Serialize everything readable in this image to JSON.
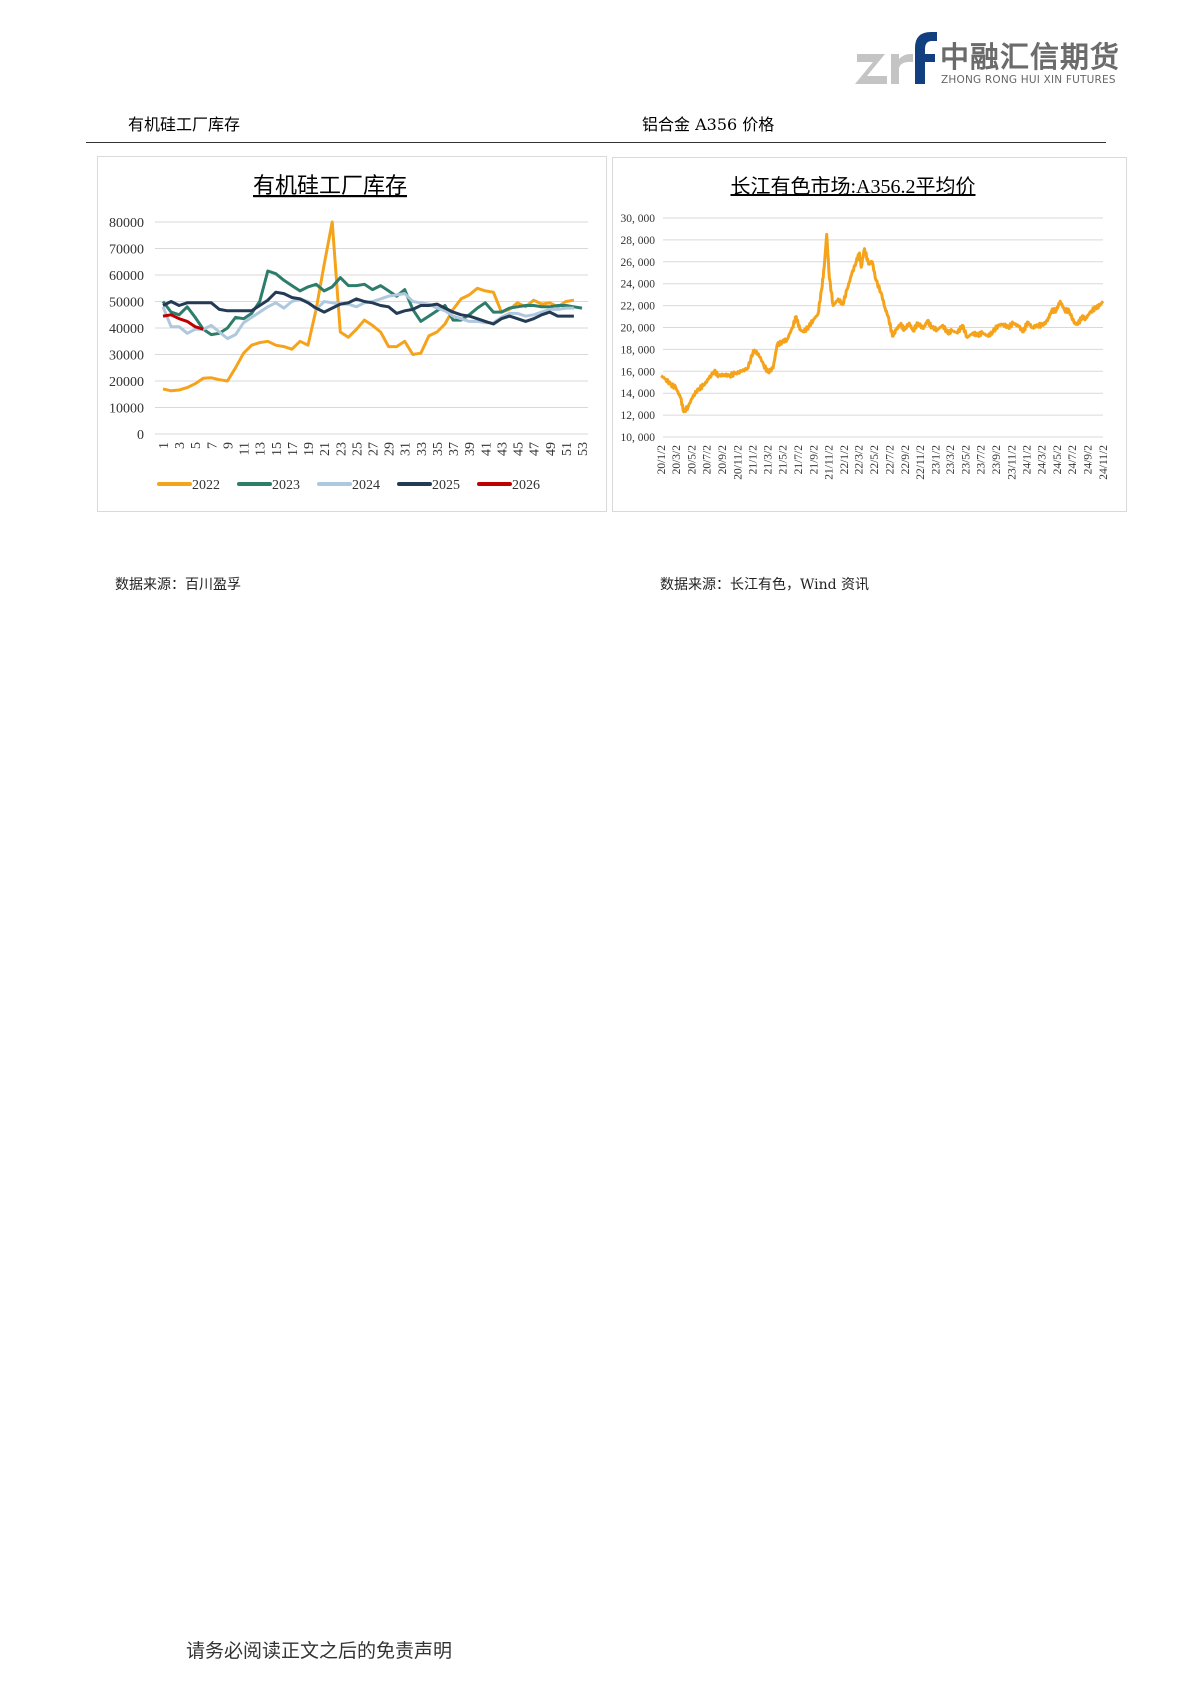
{
  "header": {
    "logo_mark": "zrf",
    "logo_cn": "中融汇信期货",
    "logo_en": "ZHONG RONG HUI XIN FUTURES"
  },
  "sections": {
    "left_title": "有机硅工厂库存",
    "right_title": "铝合金 A356 价格",
    "left_source": "数据来源：百川盈孚",
    "right_source": "数据来源：长江有色，Wind 资讯"
  },
  "footer": {
    "disclaimer": "请务必阅读正文之后的免责声明"
  },
  "chart_data": [
    {
      "type": "line",
      "title": "有机硅工厂库存",
      "xlabel": "",
      "ylabel": "",
      "ylim": [
        0,
        80000
      ],
      "y_ticks": [
        "0",
        "10000",
        "20000",
        "30000",
        "40000",
        "50000",
        "60000",
        "70000",
        "80000"
      ],
      "x_ticks": [
        "1",
        "3",
        "5",
        "7",
        "9",
        "11",
        "13",
        "15",
        "17",
        "19",
        "21",
        "23",
        "25",
        "27",
        "29",
        "31",
        "33",
        "35",
        "37",
        "39",
        "41",
        "43",
        "45",
        "47",
        "49",
        "51",
        "53"
      ],
      "x_range": [
        1,
        53
      ],
      "grid": true,
      "legend": "bottom",
      "series": [
        {
          "name": "2022",
          "color": "#F5A31A",
          "values": [
            17000,
            16300,
            16600,
            17500,
            19000,
            21000,
            21200,
            20500,
            20000,
            25000,
            30500,
            33500,
            34500,
            35000,
            33500,
            33000,
            32000,
            35000,
            33500,
            47000,
            64000,
            80000,
            38500,
            36500,
            39500,
            43000,
            41000,
            38500,
            33000,
            33000,
            35000,
            30000,
            30500,
            37000,
            38500,
            41500,
            47000,
            51000,
            52500,
            55000,
            54000,
            53500,
            46000,
            47000,
            49500,
            48000,
            50500,
            49000,
            49500,
            48000,
            50000,
            50500
          ]
        },
        {
          "name": "2023",
          "color": "#2E7D6B",
          "values": [
            50000,
            46000,
            45000,
            48000,
            44000,
            39500,
            37500,
            38000,
            40000,
            44000,
            43500,
            45500,
            50000,
            61500,
            60500,
            58000,
            56000,
            54000,
            55500,
            56500,
            54000,
            55500,
            59000,
            56000,
            56000,
            56500,
            54500,
            56000,
            54000,
            52000,
            54500,
            47000,
            42500,
            44500,
            46500,
            48500,
            43000,
            43000,
            45000,
            47500,
            49500,
            46000,
            46000,
            47500,
            48000,
            48500,
            48500,
            48000,
            48000,
            48500,
            48500,
            48000,
            47500
          ]
        },
        {
          "name": "2024",
          "color": "#AFC8DE",
          "values": [
            48000,
            40500,
            40500,
            38000,
            39500,
            39500,
            41000,
            38500,
            36000,
            37500,
            42000,
            44000,
            46000,
            48000,
            49500,
            47500,
            50000,
            51000,
            50000,
            47000,
            50000,
            49500,
            49000,
            49000,
            48000,
            49500,
            50000,
            51000,
            52000,
            52500,
            53000,
            50000,
            49500,
            49000,
            47500,
            46500,
            44500,
            43500,
            42500,
            42500,
            42000,
            42000,
            44000,
            45500,
            45500,
            44500,
            45000,
            46000,
            47000,
            47000,
            47500,
            47500
          ]
        },
        {
          "name": "2025",
          "color": "#243B55",
          "values": [
            48500,
            50000,
            48500,
            49500,
            49500,
            49500,
            49500,
            47000,
            46500,
            46500,
            46500,
            46500,
            48500,
            50500,
            53500,
            53000,
            51500,
            51000,
            49500,
            47500,
            46000,
            47500,
            49000,
            49500,
            51000,
            50000,
            49500,
            48500,
            48000,
            45500,
            46500,
            47000,
            48500,
            48500,
            49000,
            47500,
            46000,
            45000,
            44500,
            43500,
            42500,
            41500,
            43500,
            44500,
            43500,
            42500,
            43500,
            45000,
            46000,
            44500,
            44500,
            44500
          ]
        },
        {
          "name": "2026",
          "color": "#C00000",
          "values": [
            44500,
            45000,
            43500,
            42500,
            40500,
            39500
          ]
        }
      ]
    },
    {
      "type": "line",
      "title": "长江有色市场:A356.2平均价",
      "xlabel": "",
      "ylabel": "",
      "ylim": [
        10000,
        30000
      ],
      "y_ticks": [
        "10, 000",
        "12, 000",
        "14, 000",
        "16, 000",
        "18, 000",
        "20, 000",
        "22, 000",
        "24, 000",
        "26, 000",
        "28, 000",
        "30, 000"
      ],
      "x_ticks": [
        "20/1/2",
        "20/3/2",
        "20/5/2",
        "20/7/2",
        "20/9/2",
        "20/11/2",
        "21/1/2",
        "21/3/2",
        "21/5/2",
        "21/7/2",
        "21/9/2",
        "21/11/2",
        "22/1/2",
        "22/3/2",
        "22/5/2",
        "22/7/2",
        "22/9/2",
        "22/11/2",
        "23/1/2",
        "23/3/2",
        "23/5/2",
        "23/7/2",
        "23/9/2",
        "23/11/2",
        "24/1/2",
        "24/3/2",
        "24/5/2",
        "24/7/2",
        "24/9/2",
        "24/11/2"
      ],
      "x_range": [
        "2020-01-02",
        "2024-11-02"
      ],
      "grid": true,
      "legend": "none",
      "series": [
        {
          "color": "#F5A31A",
          "points": [
            [
              "2020-01-02",
              15600
            ],
            [
              "2020-01-20",
              15300
            ],
            [
              "2020-02-10",
              14800
            ],
            [
              "2020-03-01",
              14500
            ],
            [
              "2020-03-20",
              13600
            ],
            [
              "2020-04-02",
              12300
            ],
            [
              "2020-04-20",
              12800
            ],
            [
              "2020-05-10",
              13800
            ],
            [
              "2020-06-01",
              14400
            ],
            [
              "2020-06-20",
              14700
            ],
            [
              "2020-07-10",
              15300
            ],
            [
              "2020-08-01",
              16000
            ],
            [
              "2020-08-20",
              15600
            ],
            [
              "2020-09-10",
              15700
            ],
            [
              "2020-10-01",
              15600
            ],
            [
              "2020-10-25",
              15800
            ],
            [
              "2020-11-20",
              16000
            ],
            [
              "2020-12-15",
              16300
            ],
            [
              "2021-01-05",
              17900
            ],
            [
              "2021-01-25",
              17600
            ],
            [
              "2021-02-15",
              16600
            ],
            [
              "2021-03-05",
              15900
            ],
            [
              "2021-03-25",
              16300
            ],
            [
              "2021-04-10",
              18400
            ],
            [
              "2021-05-01",
              18700
            ],
            [
              "2021-05-20",
              18900
            ],
            [
              "2021-06-10",
              20000
            ],
            [
              "2021-06-25",
              21000
            ],
            [
              "2021-07-10",
              19800
            ],
            [
              "2021-07-25",
              19600
            ],
            [
              "2021-08-15",
              20100
            ],
            [
              "2021-09-01",
              20700
            ],
            [
              "2021-09-20",
              21200
            ],
            [
              "2021-10-05",
              23500
            ],
            [
              "2021-10-15",
              25500
            ],
            [
              "2021-10-25",
              28500
            ],
            [
              "2021-11-05",
              24500
            ],
            [
              "2021-11-20",
              22000
            ],
            [
              "2021-12-10",
              22600
            ],
            [
              "2021-12-28",
              22100
            ],
            [
              "2022-01-15",
              23500
            ],
            [
              "2022-02-01",
              24800
            ],
            [
              "2022-02-20",
              26000
            ],
            [
              "2022-03-05",
              26800
            ],
            [
              "2022-03-12",
              25500
            ],
            [
              "2022-03-25",
              27200
            ],
            [
              "2022-04-10",
              25800
            ],
            [
              "2022-04-25",
              26000
            ],
            [
              "2022-05-10",
              24300
            ],
            [
              "2022-05-30",
              23200
            ],
            [
              "2022-06-15",
              21800
            ],
            [
              "2022-06-30",
              20800
            ],
            [
              "2022-07-15",
              19200
            ],
            [
              "2022-07-30",
              19800
            ],
            [
              "2022-08-15",
              20300
            ],
            [
              "2022-09-01",
              19800
            ],
            [
              "2022-09-20",
              20400
            ],
            [
              "2022-10-05",
              19700
            ],
            [
              "2022-10-25",
              20400
            ],
            [
              "2022-11-15",
              19900
            ],
            [
              "2022-12-01",
              20600
            ],
            [
              "2022-12-20",
              20000
            ],
            [
              "2023-01-10",
              19800
            ],
            [
              "2023-02-01",
              20200
            ],
            [
              "2023-02-20",
              19500
            ],
            [
              "2023-03-10",
              19700
            ],
            [
              "2023-04-01",
              19500
            ],
            [
              "2023-04-20",
              20200
            ],
            [
              "2023-05-10",
              19100
            ],
            [
              "2023-06-01",
              19500
            ],
            [
              "2023-06-20",
              19300
            ],
            [
              "2023-07-10",
              19500
            ],
            [
              "2023-08-01",
              19200
            ],
            [
              "2023-08-20",
              19600
            ],
            [
              "2023-09-10",
              20200
            ],
            [
              "2023-10-01",
              20300
            ],
            [
              "2023-10-20",
              20000
            ],
            [
              "2023-11-10",
              20400
            ],
            [
              "2023-12-01",
              20100
            ],
            [
              "2023-12-20",
              19600
            ],
            [
              "2024-01-05",
              20500
            ],
            [
              "2024-01-25",
              20000
            ],
            [
              "2024-02-15",
              20200
            ],
            [
              "2024-03-05",
              20200
            ],
            [
              "2024-03-25",
              20600
            ],
            [
              "2024-04-10",
              21500
            ],
            [
              "2024-04-30",
              21600
            ],
            [
              "2024-05-15",
              22400
            ],
            [
              "2024-06-01",
              21600
            ],
            [
              "2024-06-20",
              21500
            ],
            [
              "2024-07-10",
              20400
            ],
            [
              "2024-07-25",
              20300
            ],
            [
              "2024-08-10",
              21000
            ],
            [
              "2024-08-25",
              20800
            ],
            [
              "2024-09-15",
              21500
            ],
            [
              "2024-10-05",
              21800
            ],
            [
              "2024-10-20",
              22000
            ],
            [
              "2024-11-02",
              22400
            ]
          ]
        }
      ]
    }
  ]
}
